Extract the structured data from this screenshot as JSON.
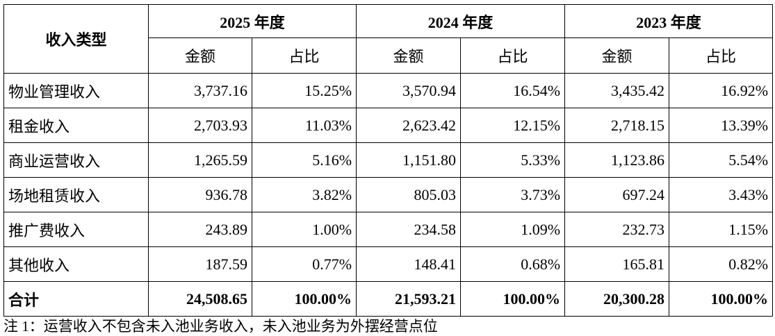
{
  "table": {
    "row_label_header": "收入类型",
    "periods": [
      {
        "title": "2025 年度",
        "columns": [
          "金额",
          "占比"
        ]
      },
      {
        "title": "2024 年度",
        "columns": [
          "金额",
          "占比"
        ]
      },
      {
        "title": "2023 年度",
        "columns": [
          "金额",
          "占比"
        ]
      }
    ],
    "rows": [
      [
        "物业管理收入",
        "3,737.16",
        "15.25%",
        "3,570.94",
        "16.54%",
        "3,435.42",
        "16.92%"
      ],
      [
        "租金收入",
        "2,703.93",
        "11.03%",
        "2,623.42",
        "12.15%",
        "2,718.15",
        "13.39%"
      ],
      [
        "商业运营收入",
        "1,265.59",
        "5.16%",
        "1,151.80",
        "5.33%",
        "1,123.86",
        "5.54%"
      ],
      [
        "场地租赁收入",
        "936.78",
        "3.82%",
        "805.03",
        "3.73%",
        "697.24",
        "3.43%"
      ],
      [
        "推广费收入",
        "243.89",
        "1.00%",
        "234.58",
        "1.09%",
        "232.73",
        "1.15%"
      ],
      [
        "其他收入",
        "187.59",
        "0.77%",
        "148.41",
        "0.68%",
        "165.81",
        "0.82%"
      ]
    ],
    "total": [
      "合计",
      "24,508.65",
      "100.00%",
      "21,593.21",
      "100.00%",
      "20,300.28",
      "100.00%"
    ]
  },
  "note": "注 1：运营收入不包含未入池业务收入，未入池业务为外摆经营点位"
}
